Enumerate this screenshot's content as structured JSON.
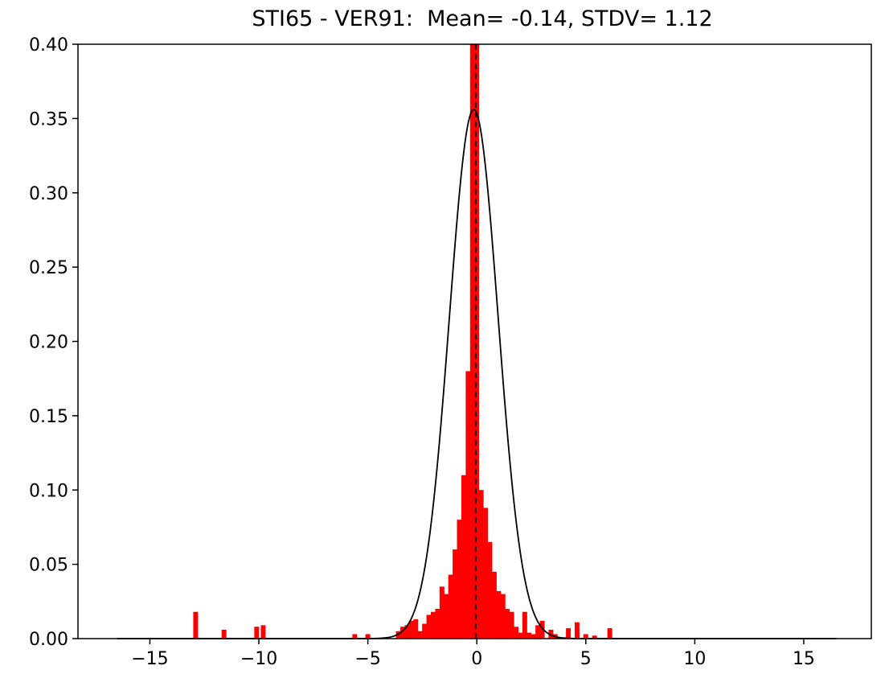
{
  "chart_data": {
    "type": "histogram",
    "title": "STI65 - VER91:  Mean= -0.14, STDV= 1.12",
    "xlabel": "",
    "ylabel": "",
    "xlim": [
      -18.3,
      18.1
    ],
    "ylim": [
      0,
      0.4
    ],
    "xticks": [
      -15,
      -10,
      -5,
      0,
      5,
      10,
      15
    ],
    "yticks": [
      0.0,
      0.05,
      0.1,
      0.15,
      0.2,
      0.25,
      0.3,
      0.35,
      0.4
    ],
    "grid": false,
    "legend": "none",
    "bin_width": 0.22,
    "histogram": {
      "color": "#ff0000",
      "bars": [
        {
          "x": -12.9,
          "y": 0.018
        },
        {
          "x": -11.6,
          "y": 0.006
        },
        {
          "x": -10.1,
          "y": 0.008
        },
        {
          "x": -9.8,
          "y": 0.009
        },
        {
          "x": -5.6,
          "y": 0.003
        },
        {
          "x": -5.0,
          "y": 0.003
        },
        {
          "x": -3.6,
          "y": 0.005
        },
        {
          "x": -3.4,
          "y": 0.008
        },
        {
          "x": -3.2,
          "y": 0.009
        },
        {
          "x": -3.0,
          "y": 0.012
        },
        {
          "x": -2.8,
          "y": 0.013
        },
        {
          "x": -2.6,
          "y": 0.005
        },
        {
          "x": -2.4,
          "y": 0.01
        },
        {
          "x": -2.2,
          "y": 0.016
        },
        {
          "x": -2.0,
          "y": 0.018
        },
        {
          "x": -1.8,
          "y": 0.02
        },
        {
          "x": -1.6,
          "y": 0.035
        },
        {
          "x": -1.4,
          "y": 0.03
        },
        {
          "x": -1.2,
          "y": 0.043
        },
        {
          "x": -1.0,
          "y": 0.06
        },
        {
          "x": -0.8,
          "y": 0.08
        },
        {
          "x": -0.6,
          "y": 0.11
        },
        {
          "x": -0.4,
          "y": 0.18
        },
        {
          "x": -0.2,
          "y": 0.4
        },
        {
          "x": 0.0,
          "y": 0.4
        },
        {
          "x": 0.2,
          "y": 0.1
        },
        {
          "x": 0.4,
          "y": 0.088
        },
        {
          "x": 0.6,
          "y": 0.065
        },
        {
          "x": 0.8,
          "y": 0.045
        },
        {
          "x": 1.0,
          "y": 0.032
        },
        {
          "x": 1.2,
          "y": 0.03
        },
        {
          "x": 1.4,
          "y": 0.02
        },
        {
          "x": 1.6,
          "y": 0.018
        },
        {
          "x": 1.8,
          "y": 0.008
        },
        {
          "x": 2.0,
          "y": 0.004
        },
        {
          "x": 2.2,
          "y": 0.018
        },
        {
          "x": 2.4,
          "y": 0.004
        },
        {
          "x": 2.6,
          "y": 0.003
        },
        {
          "x": 2.8,
          "y": 0.009
        },
        {
          "x": 3.0,
          "y": 0.012
        },
        {
          "x": 3.4,
          "y": 0.006
        },
        {
          "x": 3.6,
          "y": 0.003
        },
        {
          "x": 4.2,
          "y": 0.007
        },
        {
          "x": 4.6,
          "y": 0.011
        },
        {
          "x": 5.0,
          "y": 0.003
        },
        {
          "x": 5.4,
          "y": 0.002
        },
        {
          "x": 6.1,
          "y": 0.007
        }
      ]
    },
    "fit_curve": {
      "type": "normal",
      "mean": -0.14,
      "stdv": 1.12,
      "x_range": [
        -16.5,
        16.5
      ],
      "color": "#000000"
    },
    "reference_line": {
      "x": -0.05,
      "style": "dashed",
      "color": "#000000"
    }
  }
}
